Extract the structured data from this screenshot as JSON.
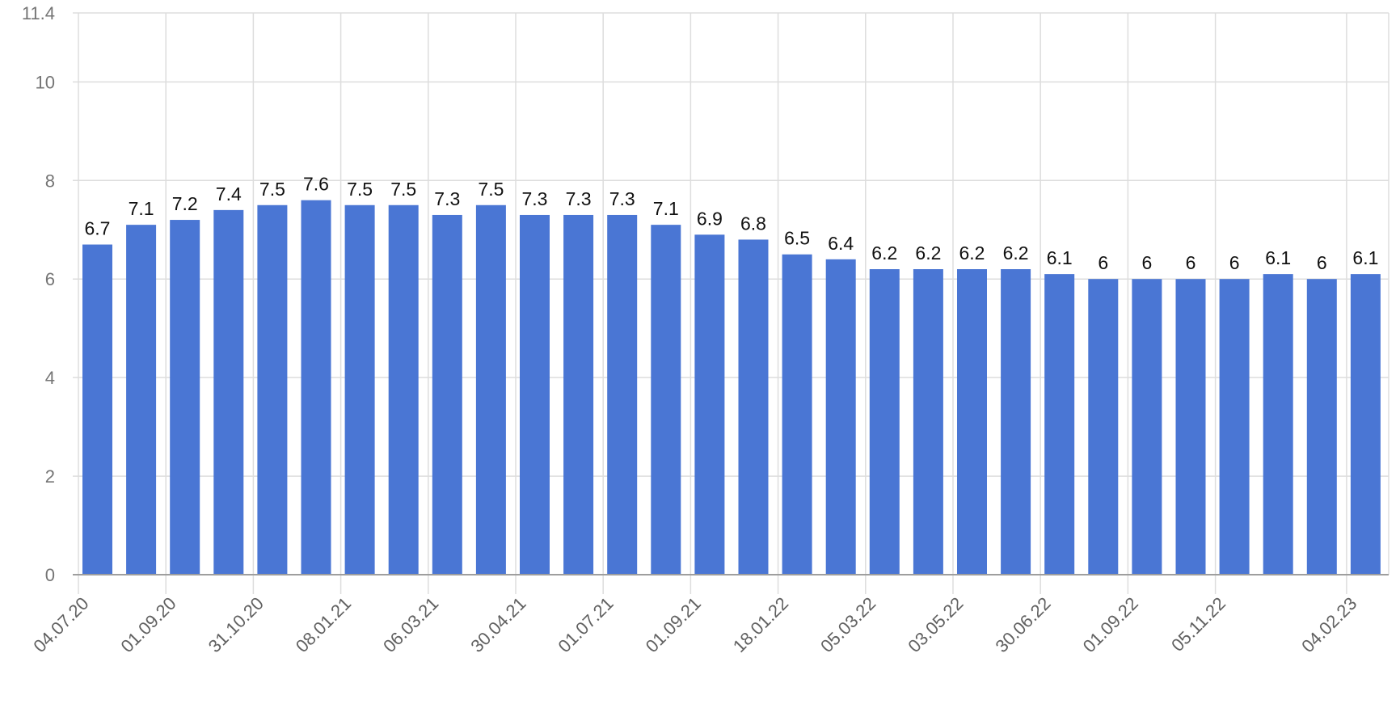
{
  "chart_data": {
    "type": "bar",
    "categories": [
      "04.07.20",
      "",
      "01.09.20",
      "",
      "31.10.20",
      "",
      "08.01.21",
      "",
      "06.03.21",
      "",
      "30.04.21",
      "",
      "01.07.21",
      "",
      "01.09.21",
      "",
      "18.01.22",
      "",
      "05.03.22",
      "",
      "03.05.22",
      "",
      "30.06.22",
      "",
      "01.09.22",
      "",
      "05.11.22",
      "",
      "",
      "04.02.23"
    ],
    "x_tick_labels": [
      "04.07.20",
      "01.09.20",
      "31.10.20",
      "08.01.21",
      "06.03.21",
      "30.04.21",
      "01.07.21",
      "01.09.21",
      "18.01.22",
      "05.03.22",
      "03.05.22",
      "30.06.22",
      "01.09.22",
      "05.11.22",
      "04.02.23"
    ],
    "values": [
      6.7,
      7.1,
      7.2,
      7.4,
      7.5,
      7.6,
      7.5,
      7.5,
      7.3,
      7.5,
      7.3,
      7.3,
      7.3,
      7.1,
      6.9,
      6.8,
      6.5,
      6.4,
      6.2,
      6.2,
      6.2,
      6.2,
      6.1,
      6,
      6,
      6,
      6,
      6.1,
      6,
      6.1
    ],
    "data_labels": [
      "6.7",
      "7.1",
      "7.2",
      "7.4",
      "7.5",
      "7.6",
      "7.5",
      "7.5",
      "7.3",
      "7.5",
      "7.3",
      "7.3",
      "7.3",
      "7.1",
      "6.9",
      "6.8",
      "6.5",
      "6.4",
      "6.2",
      "6.2",
      "6.2",
      "6.2",
      "6.1",
      "6",
      "6",
      "6",
      "6",
      "6.1",
      "6",
      "6.1"
    ],
    "y_tick_labels": [
      "0",
      "2",
      "4",
      "6",
      "8",
      "10",
      "11.4"
    ],
    "y_ticks": [
      0,
      2,
      4,
      6,
      8,
      10,
      11.4
    ],
    "title": "",
    "xlabel": "",
    "ylabel": "",
    "ylim": [
      0,
      11.4
    ],
    "grid": true,
    "legend": "none",
    "colors": {
      "bar": "#4a76d4",
      "grid": "#dddddd",
      "axis": "#9e9e9e"
    }
  }
}
